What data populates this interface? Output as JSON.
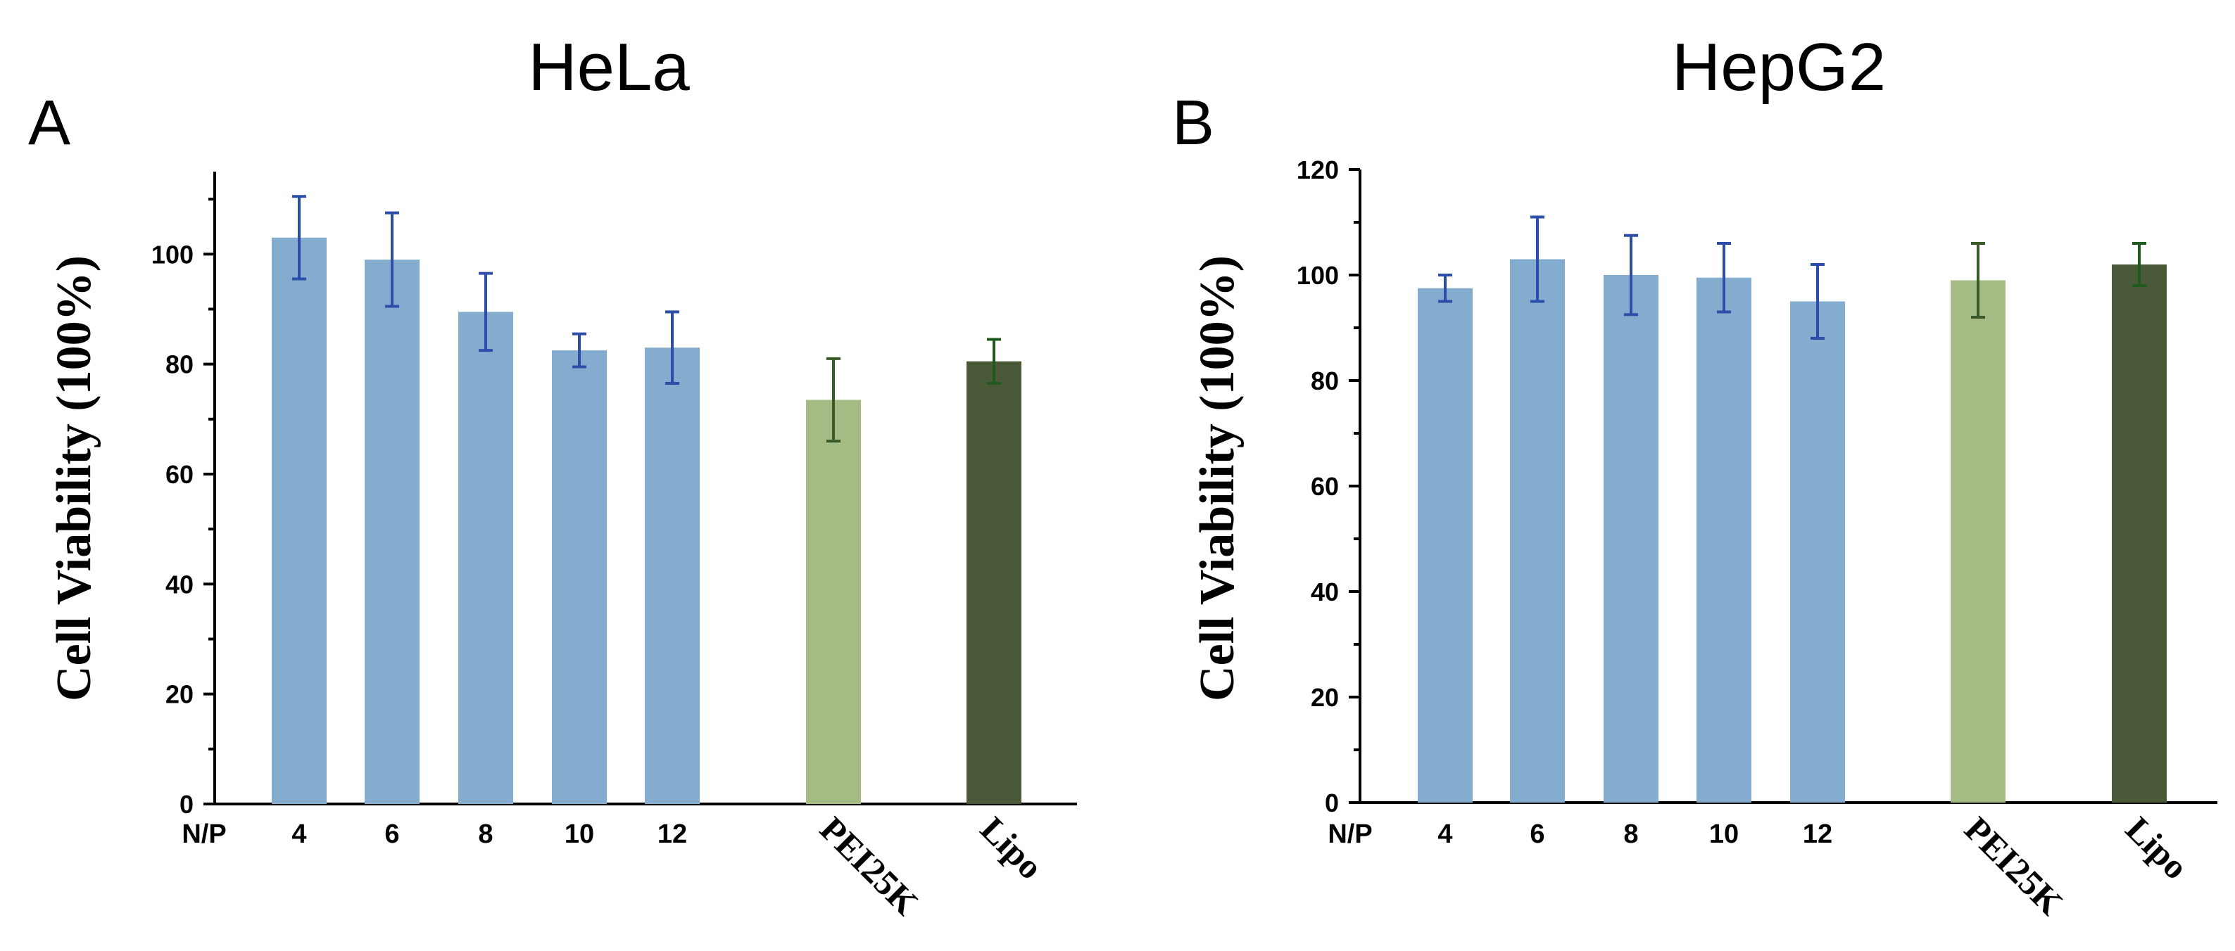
{
  "colors": {
    "np_bar": "#83acce",
    "pei_bar": "#a4bc84",
    "lipo_bar": "#4a5a38",
    "np_err": "#2c4ea8",
    "pei_err": "#3a5a2a",
    "lipo_err": "#1f5a1f"
  },
  "chart_data": [
    {
      "type": "bar",
      "panel": "A",
      "title": "HeLa",
      "ylabel": "Cell Viability (100%)",
      "ylim": [
        0,
        115
      ],
      "yticks": [
        "0",
        "20",
        "40",
        "60",
        "80",
        "100"
      ],
      "np_prefix": "N/P",
      "categories": [
        "4",
        "6",
        "8",
        "10",
        "12",
        "PEI25K",
        "Lipo"
      ],
      "values": [
        103,
        99,
        89.5,
        82.5,
        83,
        73.5,
        80.5
      ],
      "errors": [
        7.5,
        8.5,
        7,
        3,
        6.5,
        7.5,
        4
      ]
    },
    {
      "type": "bar",
      "panel": "B",
      "title": "HepG2",
      "ylabel": "Cell Viability (100%)",
      "ylim": [
        0,
        120
      ],
      "yticks": [
        "0",
        "20",
        "40",
        "60",
        "80",
        "100",
        "120"
      ],
      "np_prefix": "N/P",
      "categories": [
        "4",
        "6",
        "8",
        "10",
        "12",
        "PEI25K",
        "Lipo"
      ],
      "values": [
        97.5,
        103,
        100,
        99.5,
        95,
        99,
        102
      ],
      "errors": [
        2.5,
        8,
        7.5,
        6.5,
        7,
        7,
        4
      ]
    }
  ]
}
